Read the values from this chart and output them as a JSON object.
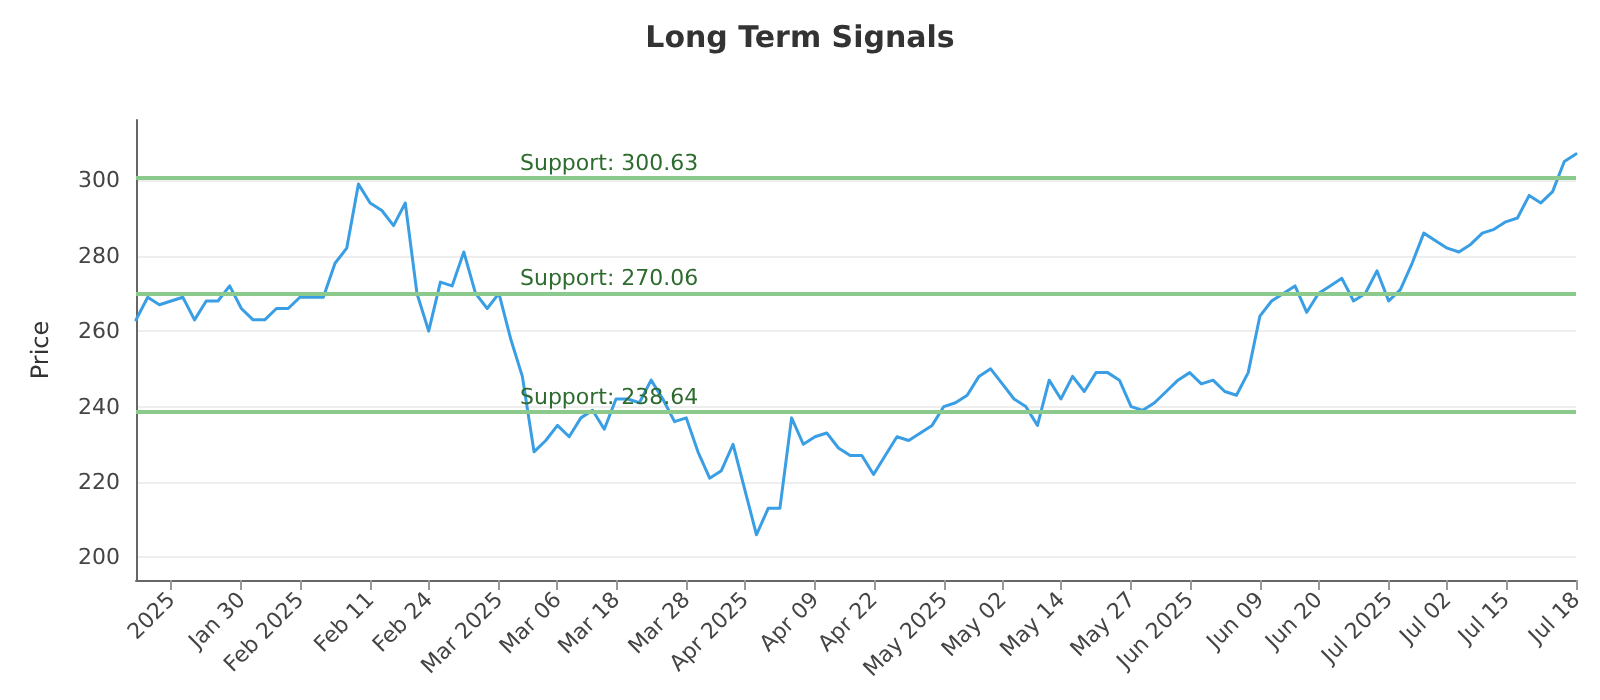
{
  "chart_data": {
    "type": "line",
    "title": "Long Term Signals",
    "ylabel": "Price",
    "categories": [
      null,
      null,
      null,
      "2025",
      null,
      null,
      null,
      null,
      null,
      "Jan 30",
      null,
      null,
      null,
      null,
      "Feb 2025",
      null,
      null,
      null,
      null,
      null,
      "Feb 11",
      null,
      null,
      null,
      null,
      "Feb 24",
      null,
      null,
      null,
      null,
      null,
      "Mar 2025",
      null,
      null,
      null,
      null,
      "Mar 06",
      null,
      null,
      null,
      null,
      "Mar 18",
      null,
      null,
      null,
      null,
      null,
      "Mar 28",
      null,
      null,
      null,
      null,
      "Apr 2025",
      null,
      null,
      null,
      null,
      null,
      "Apr 09",
      null,
      null,
      null,
      null,
      "Apr 22",
      null,
      null,
      null,
      null,
      null,
      "May 2025",
      null,
      null,
      null,
      null,
      "May 02",
      null,
      null,
      null,
      null,
      "May 14",
      null,
      null,
      null,
      null,
      null,
      "May 27",
      null,
      null,
      null,
      null,
      "Jun 2025",
      null,
      null,
      null,
      null,
      null,
      "Jun 09",
      null,
      null,
      null,
      null,
      "Jun 20",
      null,
      null,
      null,
      null,
      null,
      "Jul 2025",
      null,
      null,
      null,
      null,
      "Jul 02",
      null,
      null,
      null,
      null,
      "Jul 15",
      null,
      null,
      null,
      null,
      null,
      "Jul 18"
    ],
    "series": [
      {
        "color": "#3a9ee4",
        "values": [
          263,
          269,
          267,
          268,
          269,
          263,
          268,
          268,
          272,
          266,
          263,
          263,
          266,
          266,
          269,
          269,
          269,
          278,
          282,
          299,
          294,
          292,
          288,
          294,
          270,
          260,
          273,
          272,
          281,
          270,
          266,
          270,
          258,
          248,
          228,
          231,
          235,
          232,
          237,
          239,
          234,
          242,
          242,
          241,
          247,
          242,
          236,
          237,
          228,
          221,
          223,
          230,
          218,
          206,
          213,
          213,
          237,
          230,
          232,
          233,
          229,
          227,
          227,
          222,
          227,
          232,
          231,
          233,
          235,
          240,
          241,
          243,
          248,
          250,
          246,
          242,
          240,
          235,
          247,
          242,
          248,
          244,
          249,
          249,
          247,
          240,
          239,
          241,
          244,
          247,
          249,
          246,
          247,
          244,
          243,
          249,
          264,
          268,
          270,
          272,
          265,
          270,
          272,
          274,
          268,
          270,
          276,
          268,
          271,
          278,
          286,
          284,
          282,
          281,
          283,
          286,
          287,
          289,
          290,
          296,
          294,
          297,
          305,
          307
        ]
      }
    ],
    "ylim": [
      194,
      316
    ],
    "yticks": [
      200,
      220,
      240,
      260,
      280,
      300
    ],
    "grid": "y",
    "marker": "none",
    "line_style": "solid",
    "ref_lines": [
      {
        "axis": "y",
        "value": 300.63,
        "label": "Support: 300.63",
        "color": "#8cc98c"
      },
      {
        "axis": "y",
        "value": 270.06,
        "label": "Support: 270.06",
        "color": "#8cc98c"
      },
      {
        "axis": "y",
        "value": 238.64,
        "label": "Support: 238.64",
        "color": "#8cc98c"
      }
    ]
  }
}
